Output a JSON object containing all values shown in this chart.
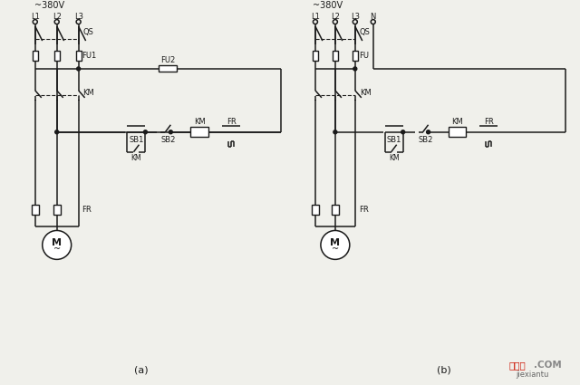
{
  "bg_color": "#f0f0eb",
  "line_color": "#1a1a1a",
  "fig_width": 6.4,
  "fig_height": 4.25,
  "dpi": 100,
  "caption_a": "(a)",
  "caption_b": "(b)",
  "voltage_a": "~380V",
  "voltage_b": "~380V",
  "watermark_jx": "接线图",
  "watermark_com": ".COM",
  "watermark_sub": "jiexiantu"
}
